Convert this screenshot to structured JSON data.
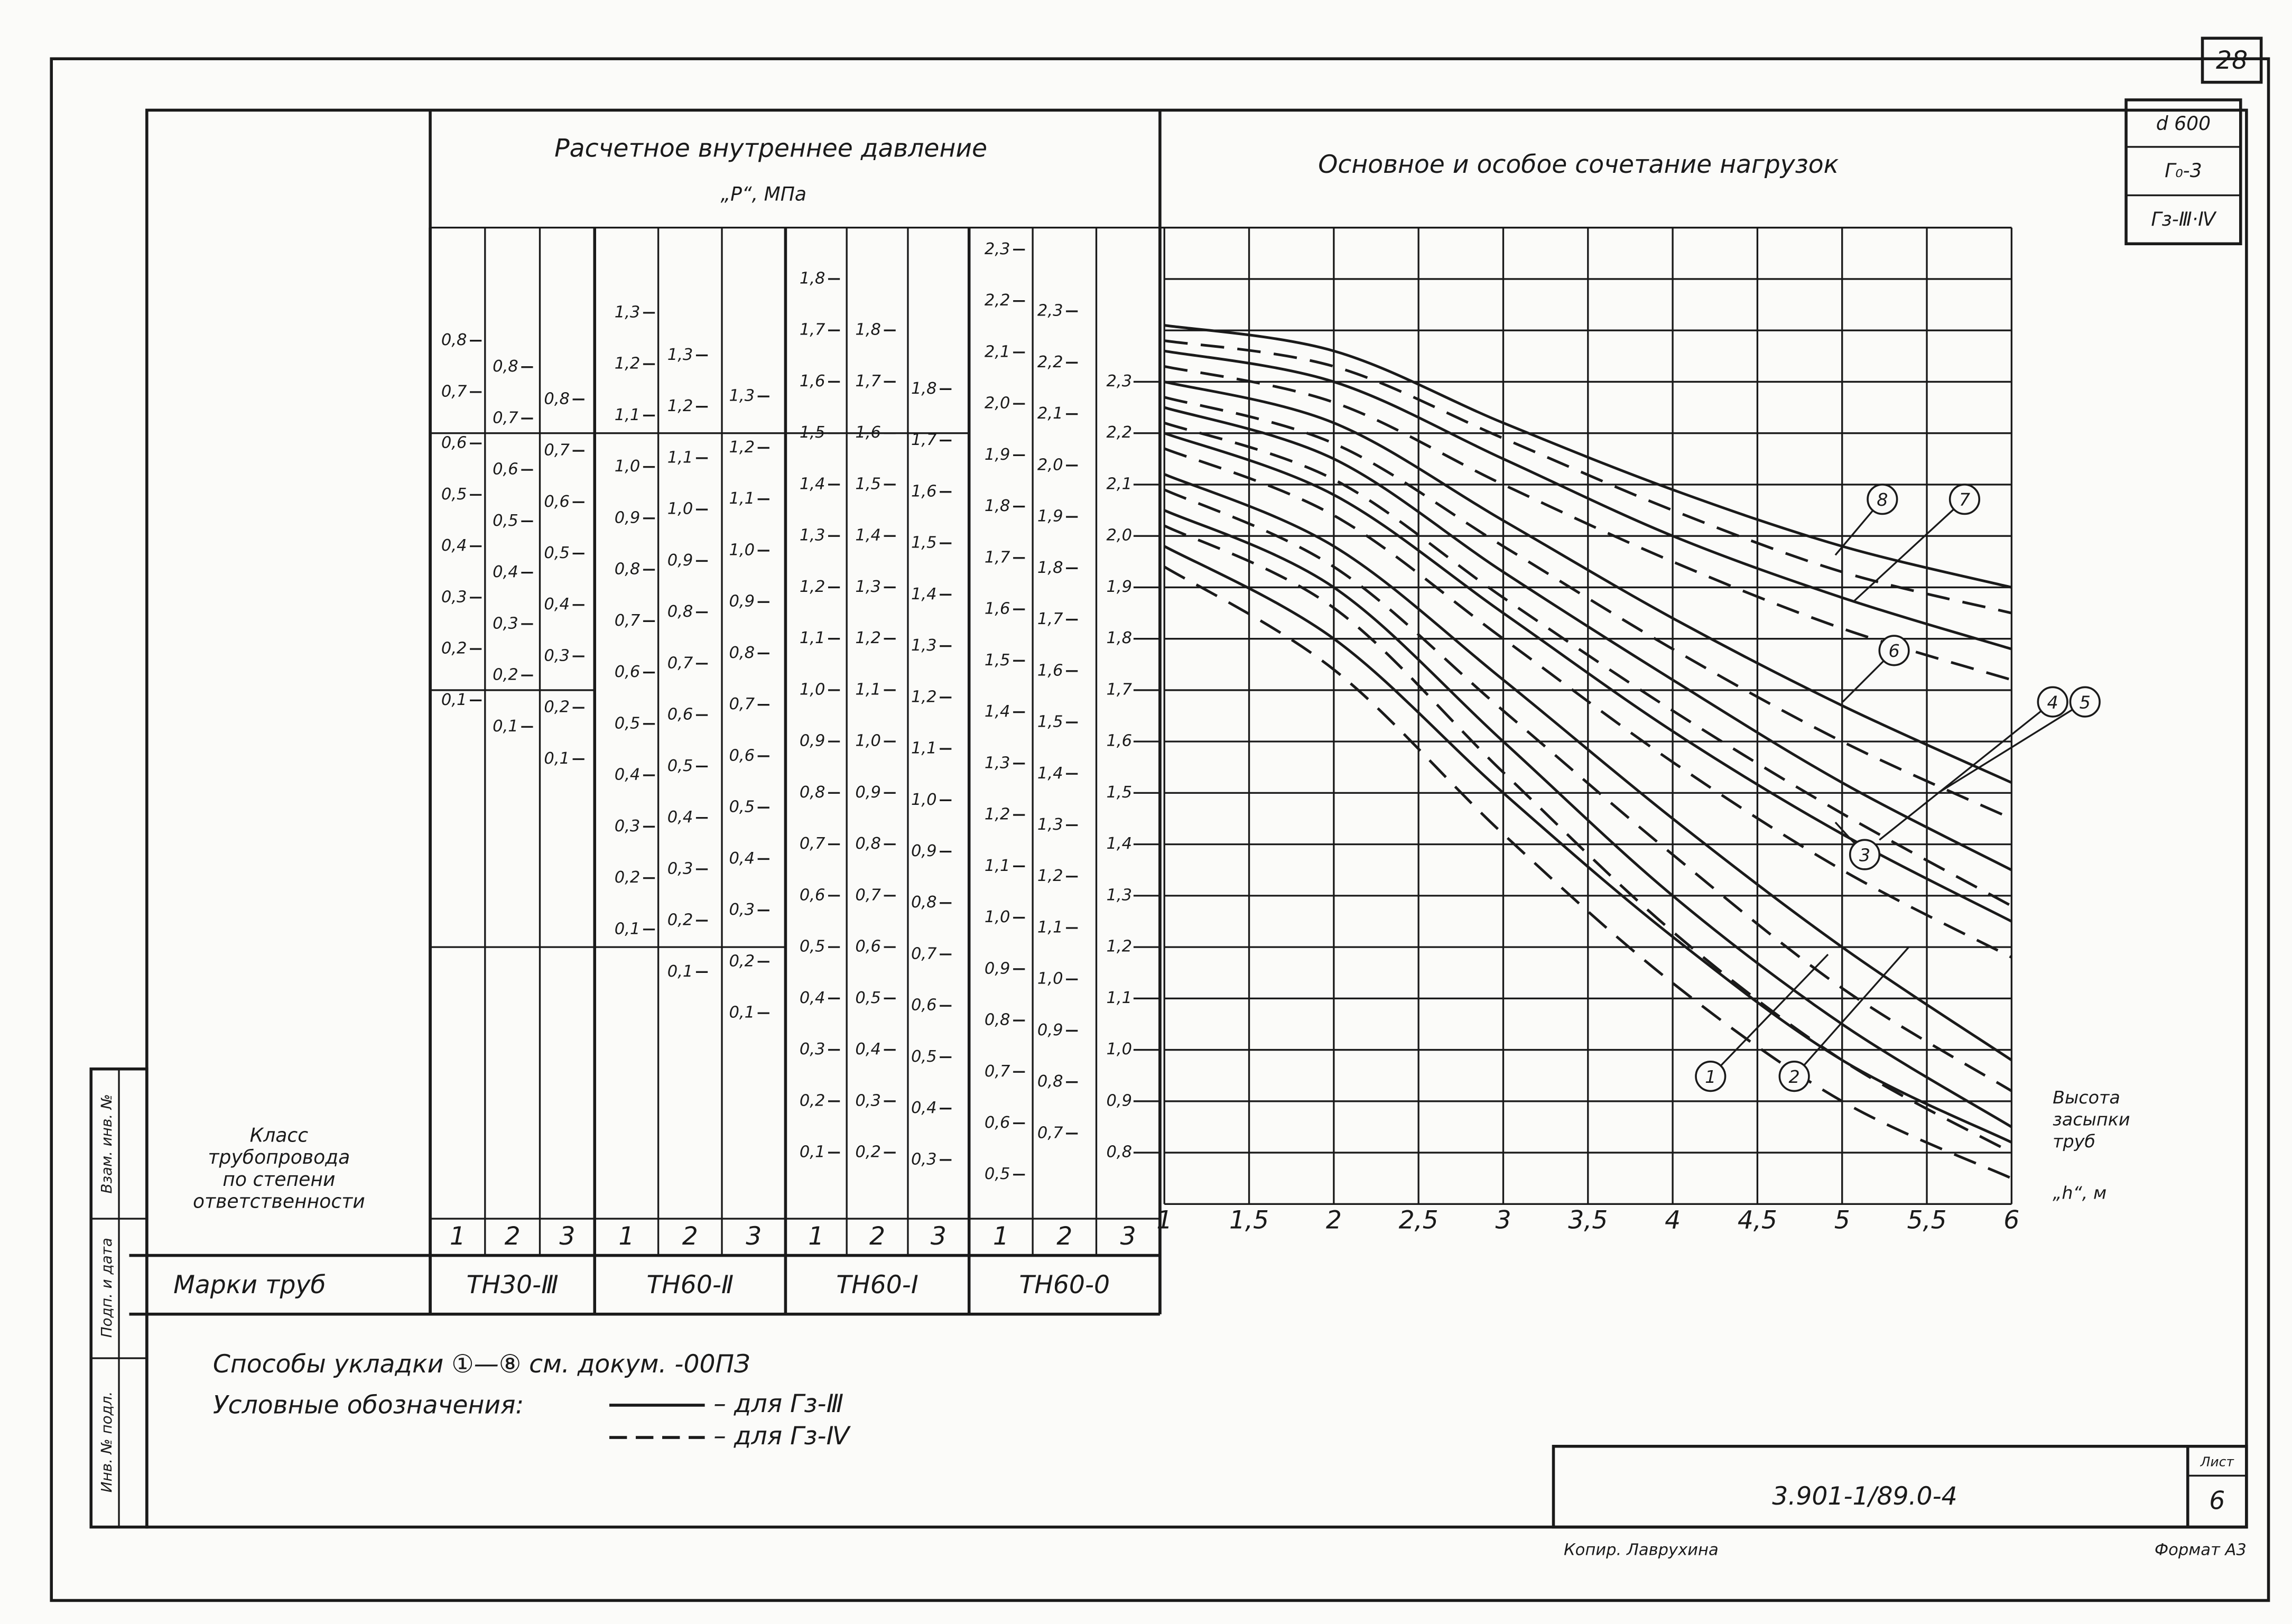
{
  "stamp": {
    "sheet_number": "28",
    "diameter": "d 600",
    "soil_1": "Г₀-3",
    "soil_2": "Гз-Ⅲ·Ⅳ"
  },
  "header": {
    "pressure_title": "Расчетное внутреннее давление",
    "pressure_unit": "„Р“, МПа",
    "loads_title": "Основное и особое сочетание нагрузок"
  },
  "left_labels": {
    "pipeline_class": [
      "Класс",
      "трубопровода",
      "по степени",
      "ответственности"
    ],
    "pipe_grades": "Марки труб"
  },
  "scales": [
    {
      "grade": "ТН30-Ⅲ",
      "columns": [
        {
          "class": "1",
          "labels": [
            "0,8",
            "0,7",
            "0,6",
            "0,5",
            "0,4",
            "0,3",
            "0,2",
            "0,1"
          ]
        },
        {
          "class": "2",
          "labels": [
            "0,8",
            "0,7",
            "0,6",
            "0,5",
            "0,4",
            "0,3",
            "0,2",
            "0,1"
          ]
        },
        {
          "class": "3",
          "labels": [
            "0,8",
            "0,7",
            "0,6",
            "0,5",
            "0,4",
            "0,3",
            "0,2",
            "0,1"
          ]
        }
      ]
    },
    {
      "grade": "ТН60-Ⅱ",
      "columns": [
        {
          "class": "1",
          "labels": [
            "1,3",
            "1,2",
            "1,1",
            "1,0",
            "0,9",
            "0,8",
            "0,7",
            "0,6",
            "0,5",
            "0,4",
            "0,3",
            "0,2",
            "0,1"
          ]
        },
        {
          "class": "2",
          "labels": [
            "1,3",
            "1,2",
            "1,1",
            "1,0",
            "0,9",
            "0,8",
            "0,7",
            "0,6",
            "0,5",
            "0,4",
            "0,3",
            "0,2",
            "0,1"
          ]
        },
        {
          "class": "3",
          "labels": [
            "1,3",
            "1,2",
            "1,1",
            "1,0",
            "0,9",
            "0,8",
            "0,7",
            "0,6",
            "0,5",
            "0,4",
            "0,3",
            "0,2",
            "0,1"
          ]
        }
      ]
    },
    {
      "grade": "ТН60-Ⅰ",
      "columns": [
        {
          "class": "1",
          "labels": [
            "1,8",
            "1,7",
            "1,6",
            "1,5",
            "1,4",
            "1,3",
            "1,2",
            "1,1",
            "1,0",
            "0,9",
            "0,8",
            "0,7",
            "0,6",
            "0,5",
            "0,4",
            "0,3",
            "0,2",
            "0,1"
          ]
        },
        {
          "class": "2",
          "labels": [
            "1,8",
            "1,7",
            "1,6",
            "1,5",
            "1,4",
            "1,3",
            "1,2",
            "1,1",
            "1,0",
            "0,9",
            "0,8",
            "0,7",
            "0,6",
            "0,5",
            "0,4",
            "0,3",
            "0,2"
          ]
        },
        {
          "class": "3",
          "labels": [
            "1,8",
            "1,7",
            "1,6",
            "1,5",
            "1,4",
            "1,3",
            "1,2",
            "1,1",
            "1,0",
            "0,9",
            "0,8",
            "0,7",
            "0,6",
            "0,5",
            "0,4",
            "0,3"
          ]
        }
      ]
    },
    {
      "grade": "ТН60-0",
      "columns": [
        {
          "class": "1",
          "labels": [
            "2,3",
            "2,2",
            "2,1",
            "2,0",
            "1,9",
            "1,8",
            "1,7",
            "1,6",
            "1,5",
            "1,4",
            "1,3",
            "1,2",
            "1,1",
            "1,0",
            "0,9",
            "0,8",
            "0,7",
            "0,6",
            "0,5"
          ]
        },
        {
          "class": "2",
          "labels": [
            "2,3",
            "2,2",
            "2,1",
            "2,0",
            "1,9",
            "1,8",
            "1,7",
            "1,6",
            "1,5",
            "1,4",
            "1,3",
            "1,2",
            "1,1",
            "1,0",
            "0,9",
            "0,8",
            "0,7"
          ]
        },
        {
          "class": "3"
        }
      ]
    }
  ],
  "chart_data": {
    "type": "line",
    "x_label": [
      "Высота",
      "засыпки",
      "труб",
      "„h“, м"
    ],
    "x": [
      1,
      2,
      3,
      4,
      5,
      6
    ],
    "xlim": [
      1,
      6
    ],
    "xticks": [
      1,
      {
        "value": 1.5,
        "label": "1,5"
      },
      2,
      {
        "value": 2.5,
        "label": "2,5"
      },
      3,
      {
        "value": 3.5,
        "label": "3,5"
      },
      4,
      {
        "value": 4.5,
        "label": "4,5"
      },
      5,
      {
        "value": 5.5,
        "label": "5,5"
      },
      6
    ],
    "ylim": [
      0.7,
      2.6
    ],
    "yticks": [
      {
        "value": 2.3,
        "label": "2,3"
      },
      {
        "value": 2.2,
        "label": "2,2"
      },
      {
        "value": 2.1,
        "label": "2,1"
      },
      {
        "value": 2.0,
        "label": "2,0"
      },
      {
        "value": 1.9,
        "label": "1,9"
      },
      {
        "value": 1.8,
        "label": "1,8"
      },
      {
        "value": 1.7,
        "label": "1,7"
      },
      {
        "value": 1.6,
        "label": "1,6"
      },
      {
        "value": 1.5,
        "label": "1,5"
      },
      {
        "value": 1.4,
        "label": "1,4"
      },
      {
        "value": 1.3,
        "label": "1,3"
      },
      {
        "value": 1.2,
        "label": "1,2"
      },
      {
        "value": 1.1,
        "label": "1,1"
      },
      {
        "value": 1.0,
        "label": "1,0"
      },
      {
        "value": 0.9,
        "label": "0,9"
      },
      {
        "value": 0.8,
        "label": "0,8"
      }
    ],
    "grid": true,
    "color": "#1a1a1a",
    "legend": [
      {
        "label": "– для Гз-Ⅲ",
        "line_style": "solid"
      },
      {
        "label": "– для Гз-Ⅳ",
        "line_style": "dashed"
      }
    ],
    "series": [
      {
        "name": "8",
        "line_style": "solid",
        "values": [
          2.41,
          2.36,
          2.22,
          2.09,
          1.98,
          1.9
        ]
      },
      {
        "line_style": "dashed",
        "values": [
          2.38,
          2.33,
          2.19,
          2.05,
          1.93,
          1.85
        ]
      },
      {
        "name": "7",
        "line_style": "solid",
        "values": [
          2.36,
          2.3,
          2.15,
          2.0,
          1.88,
          1.78
        ]
      },
      {
        "line_style": "dashed",
        "values": [
          2.33,
          2.26,
          2.1,
          1.95,
          1.82,
          1.72
        ]
      },
      {
        "name": "6",
        "line_style": "solid",
        "values": [
          2.3,
          2.22,
          2.03,
          1.84,
          1.67,
          1.52
        ]
      },
      {
        "line_style": "dashed",
        "values": [
          2.27,
          2.18,
          1.98,
          1.78,
          1.6,
          1.45
        ]
      },
      {
        "name": "5",
        "line_style": "solid",
        "values": [
          2.25,
          2.15,
          1.93,
          1.72,
          1.52,
          1.35
        ]
      },
      {
        "line_style": "dashed",
        "values": [
          2.22,
          2.11,
          1.88,
          1.66,
          1.46,
          1.28
        ]
      },
      {
        "name": "4",
        "line_style": "solid",
        "values": [
          2.2,
          2.08,
          1.85,
          1.62,
          1.42,
          1.25
        ]
      },
      {
        "line_style": "dashed",
        "values": [
          2.17,
          2.04,
          1.8,
          1.56,
          1.35,
          1.18
        ]
      },
      {
        "name": "3",
        "line_style": "solid",
        "values": [
          2.12,
          1.98,
          1.72,
          1.45,
          1.2,
          0.98
        ]
      },
      {
        "line_style": "dashed",
        "values": [
          2.09,
          1.94,
          1.66,
          1.38,
          1.12,
          0.92
        ]
      },
      {
        "name": "2",
        "line_style": "solid",
        "values": [
          2.05,
          1.9,
          1.6,
          1.3,
          1.05,
          0.85
        ]
      },
      {
        "line_style": "dashed",
        "values": [
          2.02,
          1.86,
          1.54,
          1.23,
          0.98,
          0.8
        ]
      },
      {
        "name": "1",
        "line_style": "solid",
        "values": [
          1.98,
          1.8,
          1.5,
          1.22,
          0.98,
          0.82
        ]
      },
      {
        "line_style": "dashed",
        "values": [
          1.94,
          1.74,
          1.42,
          1.13,
          0.9,
          0.75
        ]
      }
    ]
  },
  "notes": {
    "laying_methods": "Способы укладки ①—⑧ см. докум. -00ПЗ",
    "legend_title": "Условные обозначения:"
  },
  "title_block": {
    "code": "3.901-1/89.0-4",
    "sheet_label": "Лист",
    "sheet": "6",
    "copied_by": "Копир. Лаврухина",
    "format": "Формат А3"
  },
  "side_stamp": [
    "Взам. инв. №",
    "Подп. и дата",
    "Инв. № подл."
  ]
}
